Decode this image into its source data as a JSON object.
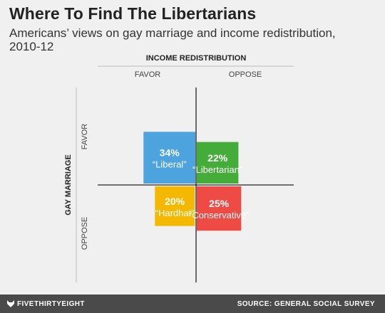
{
  "header": {
    "title": "Where To Find The Libertarians",
    "subtitle": "Americans’ views on gay marriage and income redistribution, 2010-12"
  },
  "chart_data": {
    "type": "quadrant",
    "x_axis": {
      "title": "INCOME REDISTRIBUTION",
      "categories": [
        "FAVOR",
        "OPPOSE"
      ]
    },
    "y_axis": {
      "title": "GAY MARRIAGE",
      "categories": [
        "FAVOR",
        "OPPOSE"
      ]
    },
    "cells": [
      {
        "x": "FAVOR",
        "y": "FAVOR",
        "value": 34,
        "value_label": "34%",
        "name": "“Liberal”",
        "color": "#4ca3dd"
      },
      {
        "x": "OPPOSE",
        "y": "FAVOR",
        "value": 22,
        "value_label": "22%",
        "name": "“Libertarian”",
        "color": "#44ad3a"
      },
      {
        "x": "FAVOR",
        "y": "OPPOSE",
        "value": 20,
        "value_label": "20%",
        "name": "“Hardhat”",
        "color": "#f5b800"
      },
      {
        "x": "OPPOSE",
        "y": "OPPOSE",
        "value": 25,
        "value_label": "25%",
        "name": "“Conservative”",
        "color": "#ef4b45"
      }
    ]
  },
  "footer": {
    "brand": "FIVETHIRTYEIGHT",
    "brand_icon": "fox-icon",
    "source": "SOURCE: GENERAL SOCIAL SURVEY"
  }
}
